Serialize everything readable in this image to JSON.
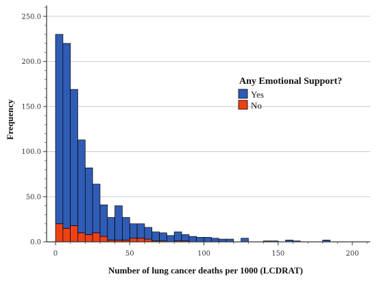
{
  "chart_data": {
    "type": "bar",
    "stacked": true,
    "xlabel": "Number of lung cancer deaths per 1000 (LCDRAT)",
    "ylabel": "Frequency",
    "xlim": [
      -6,
      212
    ],
    "ylim": [
      0,
      262
    ],
    "xticks": [
      0,
      50,
      100,
      150,
      200
    ],
    "xtick_labels": [
      "0",
      "50",
      "100",
      "150",
      "200"
    ],
    "yticks": [
      0,
      50,
      100,
      150,
      200,
      250
    ],
    "ytick_labels": [
      "0.0",
      "50.0",
      "100.0",
      "150.0",
      "200.0",
      "250.0"
    ],
    "grid": true,
    "bin_width": 5,
    "bin_starts": [
      0,
      5,
      10,
      15,
      20,
      25,
      30,
      35,
      40,
      45,
      50,
      55,
      60,
      65,
      70,
      75,
      80,
      85,
      90,
      95,
      100,
      105,
      110,
      115,
      120,
      125,
      130,
      135,
      140,
      145,
      150,
      155,
      160,
      165,
      170,
      175,
      180
    ],
    "legend": {
      "title": "Any Emotional Support?",
      "position": "right"
    },
    "series": [
      {
        "name": "Yes",
        "color": "#2f5cb4",
        "values": [
          210,
          205,
          151,
          103,
          74,
          54,
          35,
          25,
          38,
          25,
          16,
          16,
          13,
          10,
          9,
          7,
          10,
          7,
          6,
          5,
          5,
          4,
          3,
          3,
          0,
          4,
          0,
          0,
          1,
          1,
          0,
          2,
          1,
          0,
          0,
          0,
          2
        ]
      },
      {
        "name": "No",
        "color": "#ef4116",
        "values": [
          20,
          15,
          18,
          10,
          8,
          10,
          6,
          2,
          2,
          2,
          4,
          4,
          3,
          1,
          1,
          0,
          1,
          1,
          0,
          0,
          0,
          0,
          0,
          0,
          0,
          0,
          0,
          0,
          0,
          0,
          0,
          0,
          0,
          0,
          0,
          0,
          0
        ]
      }
    ]
  }
}
